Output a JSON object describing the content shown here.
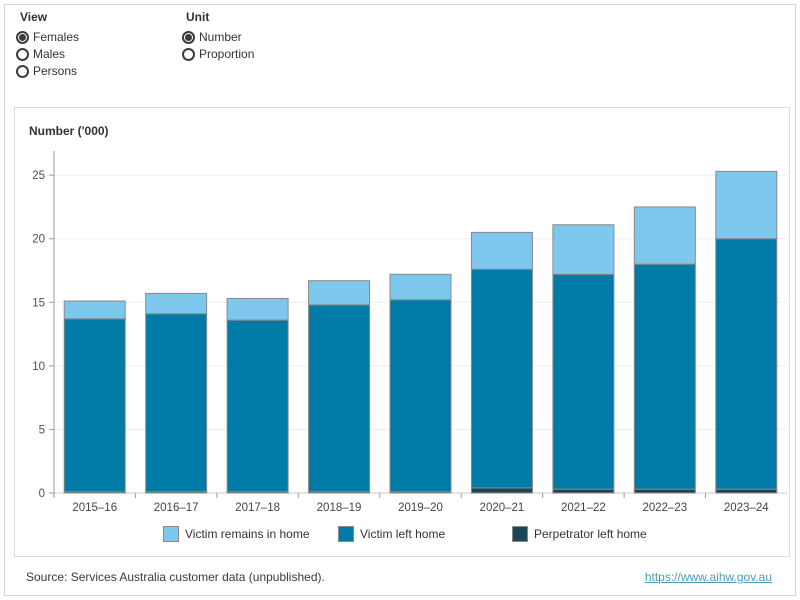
{
  "controls": {
    "view": {
      "title": "View",
      "options": [
        {
          "label": "Females",
          "selected": true
        },
        {
          "label": "Males",
          "selected": false
        },
        {
          "label": "Persons",
          "selected": false
        }
      ]
    },
    "unit": {
      "title": "Unit",
      "options": [
        {
          "label": "Number",
          "selected": true
        },
        {
          "label": "Proportion",
          "selected": false
        }
      ]
    }
  },
  "chart_data": {
    "type": "bar",
    "stacked": true,
    "title": "Number ('000)",
    "ylabel": "Number ('000)",
    "xlabel": "",
    "categories": [
      "2015–16",
      "2016–17",
      "2017–18",
      "2018–19",
      "2019–20",
      "2020–21",
      "2021–22",
      "2022–23",
      "2023–24"
    ],
    "series": [
      {
        "name": "Perpetrator left home",
        "color": "#1e4556",
        "values": [
          0.1,
          0.1,
          0.1,
          0.1,
          0.1,
          0.4,
          0.3,
          0.3,
          0.3
        ]
      },
      {
        "name": "Victim left home",
        "color": "#007ba8",
        "values": [
          13.6,
          14.0,
          13.5,
          14.7,
          15.1,
          17.2,
          16.9,
          17.7,
          19.7
        ]
      },
      {
        "name": "Victim remains in home",
        "color": "#7dc8ec",
        "values": [
          1.4,
          1.6,
          1.7,
          1.9,
          2.0,
          2.9,
          3.9,
          4.5,
          5.3
        ]
      }
    ],
    "totals": [
      15.1,
      15.7,
      15.3,
      16.7,
      17.2,
      20.5,
      21.1,
      22.5,
      25.3
    ],
    "ylim": [
      0,
      26.9
    ],
    "yticks": [
      0,
      5,
      10,
      15,
      20,
      25
    ],
    "grid": true,
    "legend_position": "bottom",
    "legend_items": [
      {
        "label": "Victim remains in home",
        "color": "#7dc8ec"
      },
      {
        "label": "Victim left home",
        "color": "#007ba8"
      },
      {
        "label": "Perpetrator left home",
        "color": "#1e4556"
      }
    ],
    "colors": {
      "bar_border": "#8a8a8a",
      "gridline": "#ededed",
      "axis_line": "#9b9b9b",
      "baseline": "#cbcbcb"
    }
  },
  "footer": {
    "source": "Source: Services Australia customer data (unpublished).",
    "link": "https://www.aihw.gov.au"
  }
}
